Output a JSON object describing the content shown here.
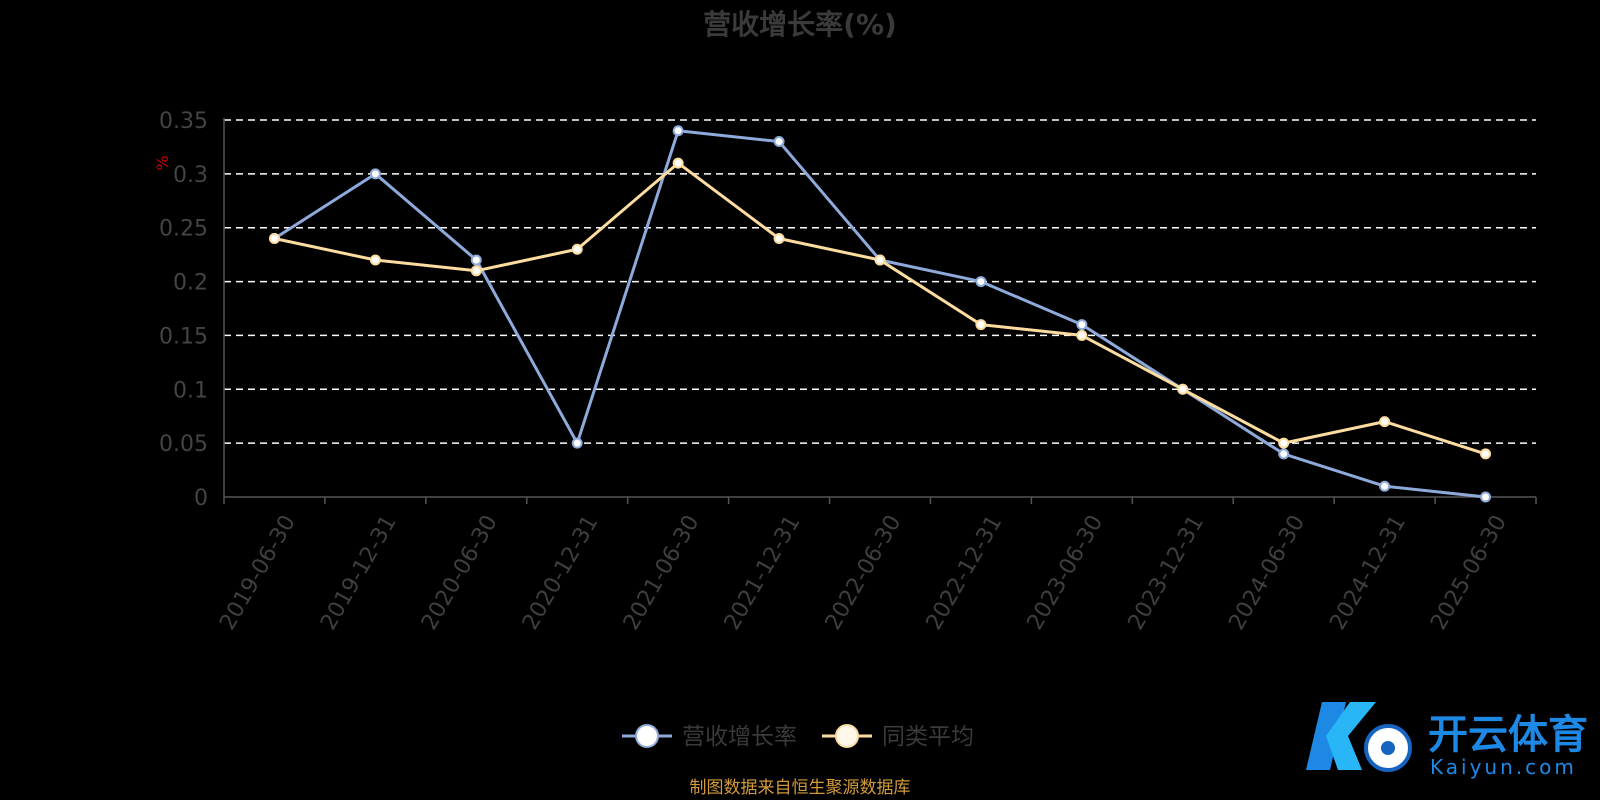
{
  "chart_data": {
    "type": "line",
    "title": "营收增长率(%)",
    "ylabel": "%",
    "xlabel": "",
    "categories": [
      "2019-06-30",
      "2019-12-31",
      "2020-06-30",
      "2020-12-31",
      "2021-06-30",
      "2021-12-31",
      "2022-06-30",
      "2022-12-31",
      "2023-06-30",
      "2023-12-31",
      "2024-06-30",
      "2024-12-31",
      "2025-06-30"
    ],
    "series": [
      {
        "name": "营收增长率",
        "color": "#8eaadb",
        "values": [
          0.24,
          0.3,
          0.22,
          0.05,
          0.34,
          0.33,
          0.22,
          0.2,
          0.16,
          0.1,
          0.04,
          0.01,
          0.0
        ]
      },
      {
        "name": "同类平均",
        "color": "#fddca0",
        "values": [
          0.24,
          0.22,
          0.21,
          0.23,
          0.31,
          0.24,
          0.22,
          0.16,
          0.15,
          0.1,
          0.05,
          0.07,
          0.04
        ]
      }
    ],
    "yticks": [
      "0",
      "0.05",
      "0.1",
      "0.15",
      "0.2",
      "0.25",
      "0.3",
      "0.35"
    ],
    "ylim": [
      0,
      0.35
    ],
    "grid": true,
    "legend_position": "bottom-center"
  },
  "source_note": "制图数据来自恒生聚源数据库",
  "watermark": {
    "text": "开云体育",
    "sub": "Kaiyun.com"
  }
}
